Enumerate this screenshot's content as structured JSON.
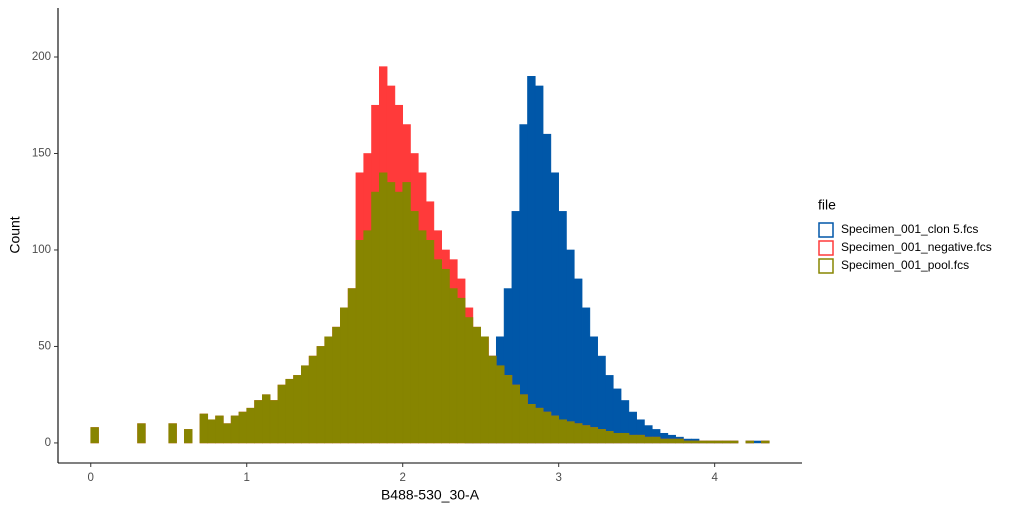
{
  "chart_data": {
    "type": "histogram",
    "x_label": "B488-530_30-A",
    "y_label": "Count",
    "legend_title": "file",
    "legend_position": "right",
    "grid": false,
    "xlim": [
      -0.21,
      4.56
    ],
    "ylim": [
      -10.4,
      225.4
    ],
    "xticks": [
      0,
      1,
      2,
      3,
      4
    ],
    "yticks": [
      0,
      50,
      100,
      150,
      200
    ],
    "bins": [
      0,
      0.05,
      0.1,
      0.15,
      0.2,
      0.25,
      0.3,
      0.35,
      0.4,
      0.45,
      0.5,
      0.55,
      0.6,
      0.65,
      0.7,
      0.75,
      0.8,
      0.85,
      0.9,
      0.95,
      1,
      1.05,
      1.1,
      1.15,
      1.2,
      1.25,
      1.3,
      1.35,
      1.4,
      1.45,
      1.5,
      1.55,
      1.6,
      1.65,
      1.7,
      1.75,
      1.8,
      1.85,
      1.9,
      1.95,
      2,
      2.05,
      2.1,
      2.15,
      2.2,
      2.25,
      2.3,
      2.35,
      2.4,
      2.45,
      2.5,
      2.55,
      2.6,
      2.65,
      2.7,
      2.75,
      2.8,
      2.85,
      2.9,
      2.95,
      3,
      3.05,
      3.1,
      3.15,
      3.2,
      3.25,
      3.3,
      3.35,
      3.4,
      3.45,
      3.5,
      3.55,
      3.6,
      3.65,
      3.7,
      3.75,
      3.8,
      3.85,
      3.9,
      3.95,
      4,
      4.05,
      4.1,
      4.15,
      4.2,
      4.25,
      4.3,
      4.35
    ],
    "series": [
      {
        "name": "Specimen_001_clon 5.fcs",
        "color": "#0057a8",
        "values": [
          0,
          0,
          0,
          0,
          0,
          0,
          0,
          0,
          0,
          0,
          0,
          0,
          0,
          0,
          0,
          0,
          0,
          0,
          0,
          0,
          0,
          0,
          0,
          0,
          0,
          0,
          0,
          0,
          0,
          0,
          0,
          0,
          0,
          0,
          0,
          0,
          0,
          0,
          0,
          0,
          0,
          0,
          0,
          0,
          0,
          0,
          0,
          0,
          5,
          15,
          30,
          45,
          55,
          80,
          120,
          165,
          190,
          185,
          160,
          140,
          120,
          100,
          85,
          70,
          55,
          45,
          35,
          28,
          22,
          16,
          12,
          9,
          7,
          5,
          4,
          3,
          2,
          2,
          1,
          1,
          1,
          1,
          1,
          0,
          1,
          1,
          1
        ]
      },
      {
        "name": "Specimen_001_negative.fcs",
        "color": "#ff3a3a",
        "values": [
          8,
          0,
          0,
          0,
          0,
          0,
          10,
          0,
          0,
          0,
          10,
          0,
          7,
          0,
          15,
          12,
          14,
          10,
          14,
          16,
          18,
          22,
          25,
          22,
          30,
          33,
          35,
          40,
          45,
          50,
          55,
          60,
          70,
          80,
          140,
          150,
          175,
          195,
          185,
          175,
          165,
          150,
          140,
          125,
          110,
          100,
          95,
          85,
          70,
          60,
          55,
          45,
          40,
          35,
          30,
          25,
          20,
          18,
          16,
          14,
          12,
          11,
          10,
          9,
          8,
          7,
          6,
          5,
          5,
          4,
          4,
          3,
          3,
          2,
          2,
          2,
          1,
          1,
          1,
          1,
          1,
          1,
          1,
          0,
          1,
          0,
          1
        ]
      },
      {
        "name": "Specimen_001_pool.fcs",
        "color": "#878500",
        "values": [
          8,
          0,
          0,
          0,
          0,
          0,
          10,
          0,
          0,
          0,
          10,
          0,
          7,
          0,
          15,
          12,
          14,
          10,
          14,
          16,
          18,
          22,
          25,
          22,
          30,
          33,
          35,
          40,
          45,
          50,
          55,
          60,
          70,
          80,
          105,
          110,
          130,
          140,
          135,
          130,
          135,
          120,
          110,
          105,
          95,
          90,
          80,
          75,
          65,
          60,
          55,
          45,
          40,
          35,
          30,
          25,
          20,
          18,
          16,
          14,
          12,
          11,
          10,
          9,
          8,
          7,
          6,
          5,
          5,
          4,
          4,
          3,
          3,
          2,
          2,
          2,
          1,
          1,
          1,
          1,
          1,
          1,
          1,
          0,
          1,
          0,
          1
        ]
      }
    ]
  }
}
